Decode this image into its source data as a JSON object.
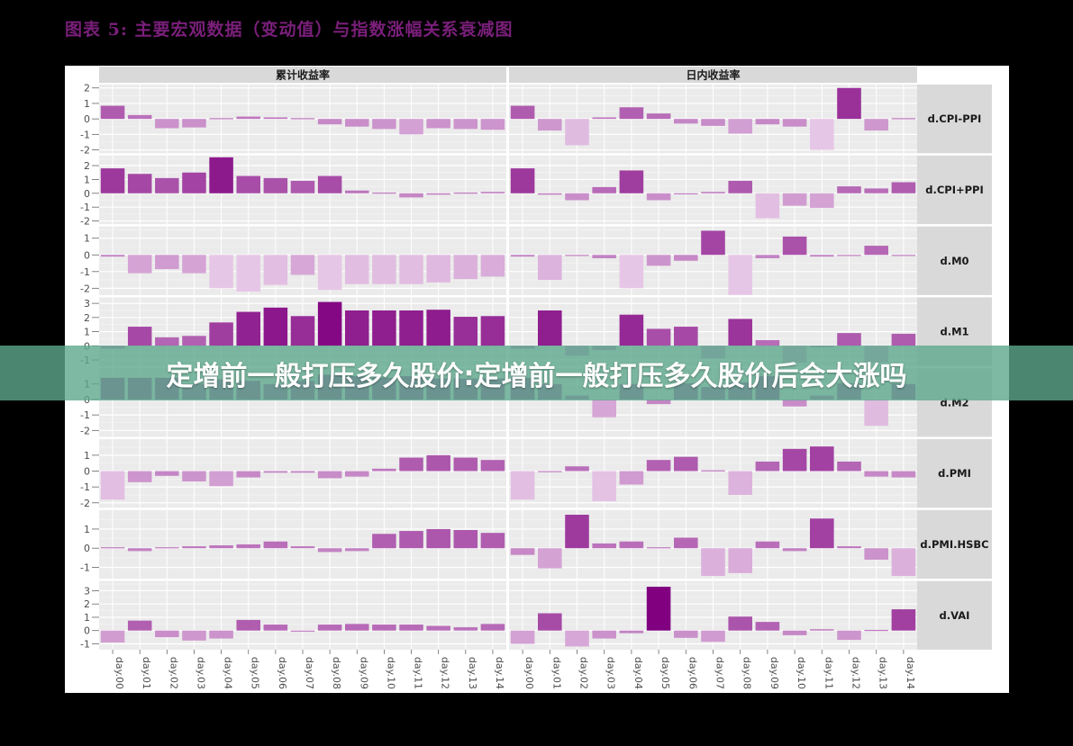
{
  "figure_title": "图表 5: 主要宏观数据（变动值）与指数涨幅关系衰减图",
  "banner_text": "定增前一般打压多久股价:定增前一般打压多久股价后会大涨吗",
  "colors": {
    "strong": "#800080",
    "weak": "#e6c6e6",
    "panel_bg": "#ebebeb",
    "strip_bg": "#d9d9d9"
  },
  "chart_data": {
    "type": "bar",
    "columns": [
      "累计收益率",
      "日内收益率"
    ],
    "categories": [
      "day.00",
      "day.01",
      "day.02",
      "day.03",
      "day.04",
      "day.05",
      "day.06",
      "day.07",
      "day.08",
      "day.09",
      "day.10",
      "day.11",
      "day.12",
      "day.13",
      "day.14"
    ],
    "rows": [
      {
        "label": "d.CPI-PPI",
        "ticks": [
          -2,
          -1,
          0,
          1,
          2
        ],
        "ylim": [
          -2.1,
          2.1
        ],
        "cumulative": [
          0.85,
          0.25,
          -0.6,
          -0.55,
          0.05,
          0.15,
          0.1,
          0.05,
          -0.35,
          -0.5,
          -0.65,
          -1.0,
          -0.6,
          -0.65,
          -0.7
        ],
        "intraday": [
          0.85,
          -0.75,
          -1.7,
          0.1,
          0.75,
          0.35,
          -0.3,
          -0.45,
          -0.95,
          -0.35,
          -0.5,
          -2.0,
          2.0,
          -0.75,
          0.05
        ]
      },
      {
        "label": "d.CPI+PPI",
        "ticks": [
          -2,
          -1,
          0,
          1,
          2
        ],
        "ylim": [
          -2.1,
          2.6
        ],
        "cumulative": [
          1.8,
          1.4,
          1.1,
          1.5,
          2.6,
          1.25,
          1.1,
          0.9,
          1.25,
          0.2,
          0.05,
          -0.3,
          -0.1,
          0.05,
          0.1
        ],
        "intraday": [
          1.8,
          -0.1,
          -0.5,
          0.45,
          1.65,
          -0.5,
          -0.05,
          0.1,
          0.9,
          -1.8,
          -0.9,
          -1.05,
          0.5,
          0.35,
          0.8
        ]
      },
      {
        "label": "d.M0",
        "ticks": [
          -2,
          -1,
          0,
          1
        ],
        "ylim": [
          -2.3,
          1.6
        ],
        "cumulative": [
          -0.1,
          -1.1,
          -0.85,
          -1.1,
          -2.0,
          -2.2,
          -1.8,
          -1.2,
          -2.1,
          -1.75,
          -1.75,
          -1.75,
          -1.65,
          -1.45,
          -1.3
        ],
        "intraday": [
          -0.1,
          -1.5,
          -0.05,
          -0.2,
          -2.0,
          -0.65,
          -0.35,
          1.45,
          -2.4,
          -0.2,
          1.1,
          -0.1,
          -0.05,
          0.55,
          0.0
        ]
      },
      {
        "label": "d.M1",
        "ticks": [
          -1,
          0,
          1,
          2,
          3
        ],
        "ylim": [
          -1.3,
          3.3
        ],
        "cumulative": [
          -0.2,
          1.35,
          0.6,
          0.7,
          1.65,
          2.4,
          2.7,
          2.1,
          3.1,
          2.5,
          2.5,
          2.5,
          2.55,
          2.05,
          2.1
        ],
        "intraday": [
          -0.2,
          2.5,
          -0.7,
          -0.3,
          2.2,
          1.2,
          1.35,
          -0.9,
          1.9,
          0.4,
          -1.2,
          -0.1,
          0.9,
          -1.2,
          0.85
        ]
      },
      {
        "label": "d.M2",
        "ticks": [
          -2,
          -1,
          0,
          1
        ],
        "ylim": [
          -2.3,
          1.9
        ],
        "cumulative": [
          1.4,
          1.4,
          1.4,
          1.0,
          1.3,
          1.2,
          1.0,
          1.2,
          1.6,
          1.5,
          1.4,
          1.5,
          1.35,
          1.35,
          1.35
        ],
        "intraday": [
          1.4,
          1.0,
          0.25,
          -1.15,
          1.0,
          -0.3,
          1.05,
          0.8,
          1.1,
          1.5,
          -0.45,
          0.25,
          1.05,
          -1.7,
          1.0
        ]
      },
      {
        "label": "d.PMI",
        "ticks": [
          -2,
          -1,
          0,
          1
        ],
        "ylim": [
          -2.2,
          1.9
        ],
        "cumulative": [
          -1.8,
          -0.7,
          -0.3,
          -0.65,
          -0.95,
          -0.4,
          -0.1,
          -0.1,
          -0.45,
          -0.35,
          0.15,
          0.85,
          1.0,
          0.85,
          0.7
        ],
        "intraday": [
          -1.8,
          0.0,
          0.3,
          -1.9,
          -0.85,
          0.7,
          0.9,
          0.05,
          -1.5,
          0.6,
          1.4,
          1.55,
          0.6,
          -0.35,
          -0.4
        ]
      },
      {
        "label": "d.PMI.HSBC",
        "ticks": [
          -1,
          0,
          1
        ],
        "ylim": [
          -1.5,
          1.9
        ],
        "cumulative": [
          0.05,
          -0.15,
          0.05,
          0.1,
          0.15,
          0.2,
          0.35,
          0.1,
          -0.2,
          -0.15,
          0.75,
          0.9,
          1.0,
          0.95,
          0.8
        ],
        "intraday": [
          -0.35,
          -1.05,
          1.75,
          0.25,
          0.35,
          0.05,
          0.55,
          -1.45,
          -1.3,
          0.35,
          -0.15,
          1.55,
          0.1,
          -0.6,
          -1.45
        ]
      },
      {
        "label": "d.VAI",
        "ticks": [
          -1,
          0,
          1,
          2,
          3
        ],
        "ylim": [
          -1.3,
          3.6
        ],
        "cumulative": [
          -0.9,
          0.75,
          -0.5,
          -0.75,
          -0.6,
          0.8,
          0.45,
          0.0,
          0.45,
          0.5,
          0.45,
          0.45,
          0.35,
          0.25,
          0.5
        ],
        "intraday": [
          -1.0,
          1.3,
          -1.2,
          -0.6,
          -0.2,
          3.3,
          -0.55,
          -0.85,
          1.05,
          0.65,
          -0.35,
          0.1,
          -0.7,
          0.05,
          1.6
        ]
      }
    ]
  }
}
